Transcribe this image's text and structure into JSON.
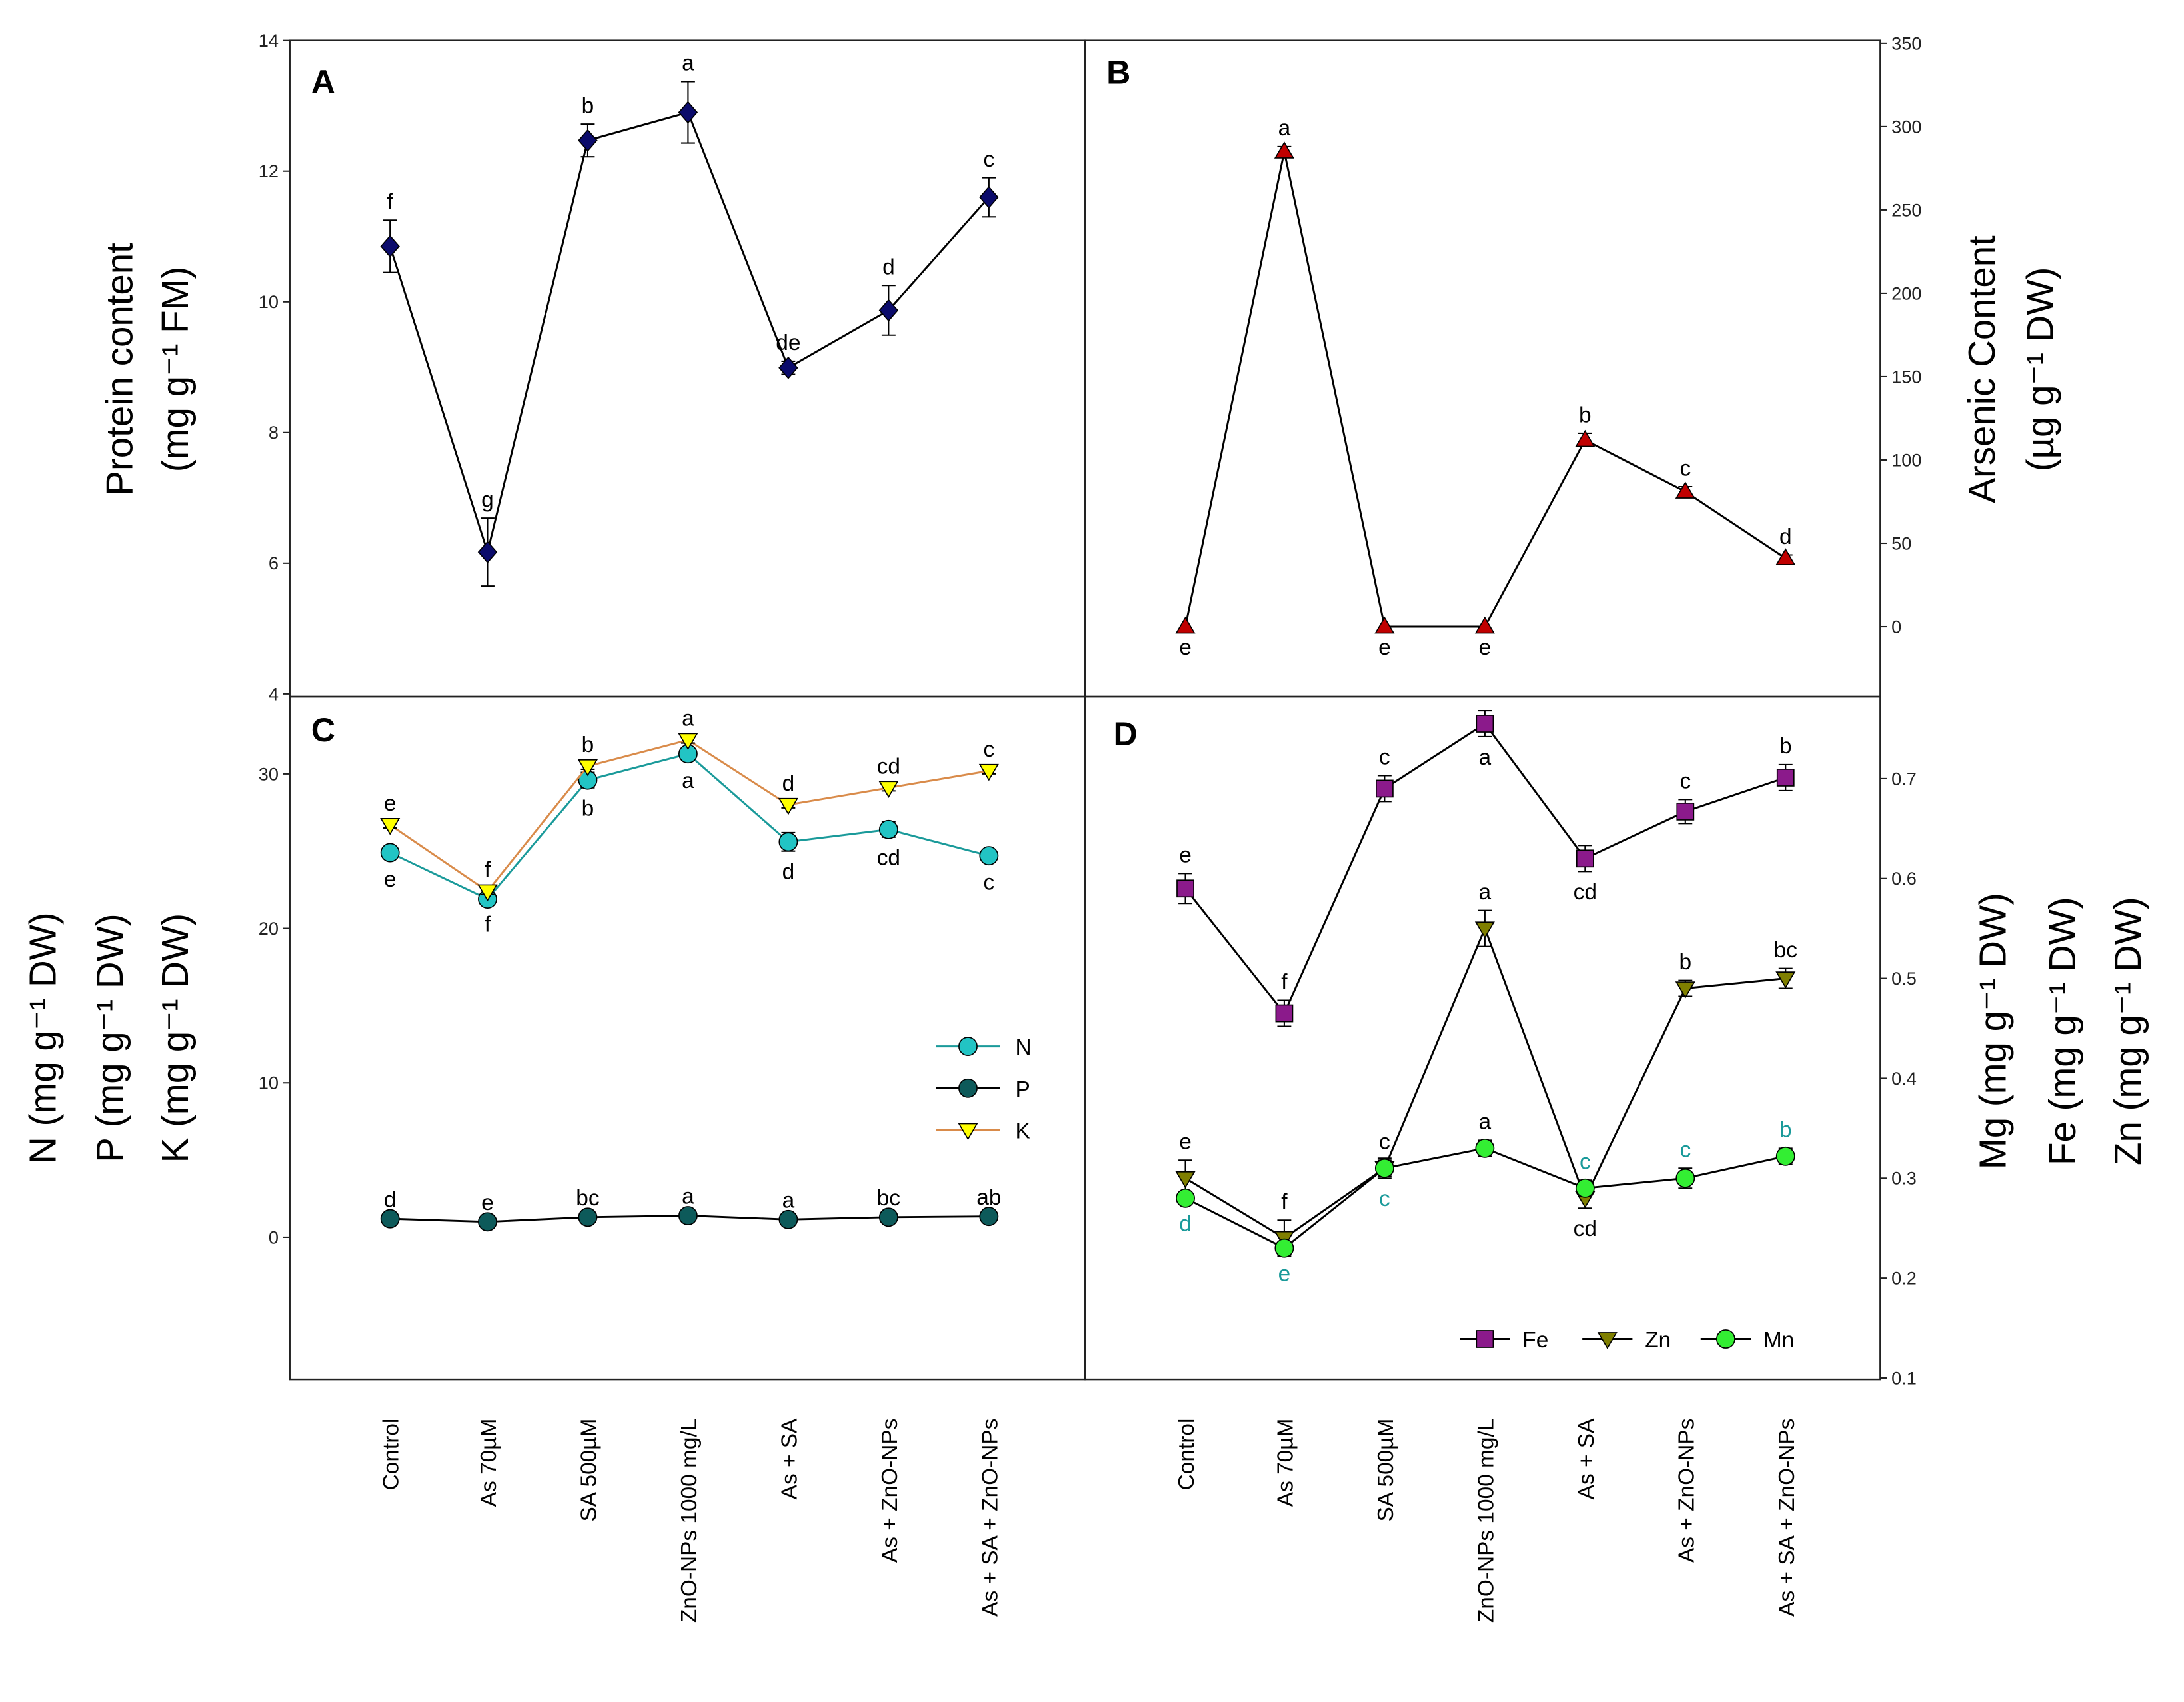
{
  "x_categories": [
    "Control",
    "As 70µM",
    "SA 500µM",
    "ZnO-NPs 1000 mg/L",
    "As + SA",
    "As + ZnO-NPs",
    "As + SA + ZnO-NPs"
  ],
  "chart_data": [
    {
      "panel": "A",
      "type": "line",
      "ylabel_lines": [
        "Protein content",
        "(mg g⁻¹ FM)"
      ],
      "yaxis_side": "left",
      "ylim": [
        4,
        14
      ],
      "yticks": [
        4,
        6,
        8,
        10,
        12,
        14
      ],
      "series": [
        {
          "name": "Protein",
          "color": "#0b0b6b",
          "line": "#000000",
          "marker": "diamond",
          "values": [
            10.85,
            6.17,
            12.47,
            12.9,
            8.99,
            9.87,
            11.6
          ],
          "errors": [
            0.4,
            0.52,
            0.25,
            0.47,
            0.1,
            0.38,
            0.3
          ],
          "letters": [
            "f",
            "g",
            "b",
            "a",
            "de",
            "d",
            "c"
          ],
          "letter_pos": [
            "above",
            "above",
            "above",
            "above",
            "above",
            "above",
            "above"
          ],
          "letter_color": "#000000"
        }
      ]
    },
    {
      "panel": "B",
      "type": "line",
      "ylabel_lines": [
        "Arsenic Content",
        "(µg g⁻¹ DW)"
      ],
      "yaxis_side": "right",
      "ylim": [
        -42,
        350
      ],
      "yticks": [
        0,
        50,
        100,
        150,
        200,
        250,
        300,
        350
      ],
      "series": [
        {
          "name": "As",
          "color": "#c00000",
          "line": "#000000",
          "marker": "triangle-up",
          "values": [
            0,
            285,
            0,
            0,
            112,
            81,
            41
          ],
          "errors": [
            0,
            3,
            0,
            0,
            4,
            3,
            2
          ],
          "letters": [
            "e",
            "a",
            "e",
            "e",
            "b",
            "c",
            "d"
          ],
          "letter_pos": [
            "below",
            "above",
            "below",
            "below",
            "above",
            "above",
            "above"
          ],
          "letter_color": "#000000"
        }
      ]
    },
    {
      "panel": "C",
      "type": "line",
      "ylabel_lines": [
        "N (mg g⁻¹ DW)",
        "P (mg g⁻¹ DW)",
        "K (mg g⁻¹ DW)"
      ],
      "yaxis_side": "left",
      "ylim": [
        -9.2,
        35
      ],
      "yticks": [
        0,
        10,
        20,
        30
      ],
      "legend": "right",
      "series": [
        {
          "name": "N",
          "color": "#22c4c4",
          "line": "#1a9a9a",
          "marker": "circle",
          "values": [
            24.9,
            21.9,
            29.6,
            31.3,
            25.6,
            26.4,
            24.7
          ],
          "errors": [
            0.4,
            0.3,
            0.5,
            0.4,
            0.6,
            0.5,
            0.4
          ],
          "letters": [
            "e",
            "f",
            "b",
            "a",
            "d",
            "cd",
            "c"
          ],
          "letter_pos": [
            "below",
            "below",
            "below",
            "below",
            "below",
            "below",
            "below"
          ],
          "letter_color": "#000000"
        },
        {
          "name": "P",
          "color": "#0d5a5a",
          "line": "#000000",
          "marker": "circle",
          "values": [
            1.2,
            1.0,
            1.3,
            1.4,
            1.15,
            1.3,
            1.35
          ],
          "errors": [
            0.05,
            0.05,
            0.05,
            0.05,
            0.05,
            0.05,
            0.05
          ],
          "letters": [
            "d",
            "e",
            "bc",
            "a",
            "a",
            "bc",
            "ab"
          ],
          "letter_pos": [
            "above",
            "above",
            "above",
            "above",
            "above",
            "above",
            "above"
          ],
          "letter_color": "#000000"
        },
        {
          "name": "K",
          "color": "#ffff00",
          "line": "#d98b4a",
          "marker": "triangle-down",
          "values": [
            26.7,
            22.4,
            30.5,
            32.2,
            28.0,
            29.1,
            30.2
          ],
          "errors": [
            0.2,
            0.2,
            0.2,
            0.2,
            0.2,
            0.2,
            0.2
          ],
          "letters": [
            "e",
            "f",
            "b",
            "a",
            "d",
            "cd",
            "c"
          ],
          "letter_pos": [
            "above",
            "above",
            "above",
            "above",
            "above",
            "above",
            "above"
          ],
          "letter_color": "#000000"
        }
      ]
    },
    {
      "panel": "D",
      "type": "line",
      "ylabel_lines": [
        "Mg (mg g⁻¹ DW)",
        "Fe (mg g⁻¹ DW)",
        "Zn (mg g⁻¹ DW)"
      ],
      "yaxis_side": "right",
      "ylim": [
        0.1,
        0.782
      ],
      "yticks": [
        0.1,
        0.2,
        0.3,
        0.4,
        0.5,
        0.6,
        0.7
      ],
      "legend": "bottom",
      "series": [
        {
          "name": "Fe",
          "color": "#8b1a8b",
          "line": "#000000",
          "marker": "square",
          "values": [
            0.59,
            0.465,
            0.69,
            0.755,
            0.62,
            0.667,
            0.701
          ],
          "errors": [
            0.015,
            0.013,
            0.013,
            0.013,
            0.013,
            0.012,
            0.013
          ],
          "letters": [
            "e",
            "f",
            "c",
            "a",
            "cd",
            "c",
            "b"
          ],
          "letter_pos": [
            "above",
            "above",
            "above",
            "below",
            "below",
            "above",
            "above"
          ],
          "letter_color": "#000000"
        },
        {
          "name": "Zn",
          "color": "#7f7f00",
          "line": "#000000",
          "marker": "triangle-down",
          "values": [
            0.3,
            0.24,
            0.31,
            0.55,
            0.28,
            0.49,
            0.5
          ],
          "errors": [
            0.018,
            0.018,
            0.008,
            0.018,
            0.01,
            0.008,
            0.01
          ],
          "letters": [
            "e",
            "f",
            "c",
            "a",
            "cd",
            "b",
            "bc"
          ],
          "letter_pos": [
            "above",
            "above",
            "above",
            "above",
            "below",
            "above",
            "above"
          ],
          "letter_color": "#000000"
        },
        {
          "name": "Mn",
          "color": "#33ee33",
          "line": "#000000",
          "marker": "circle",
          "values": [
            0.28,
            0.23,
            0.31,
            0.33,
            0.29,
            0.3,
            0.322
          ],
          "errors": [
            0.005,
            0.005,
            0.01,
            0.008,
            0.008,
            0.01,
            0.008
          ],
          "letters": [
            "d",
            "e",
            "c",
            "a",
            "c",
            "c",
            "b"
          ],
          "letter_pos": [
            "below",
            "below",
            "below",
            "above",
            "above",
            "above",
            "above"
          ],
          "letter_color": "#1a9a9a"
        }
      ]
    }
  ]
}
